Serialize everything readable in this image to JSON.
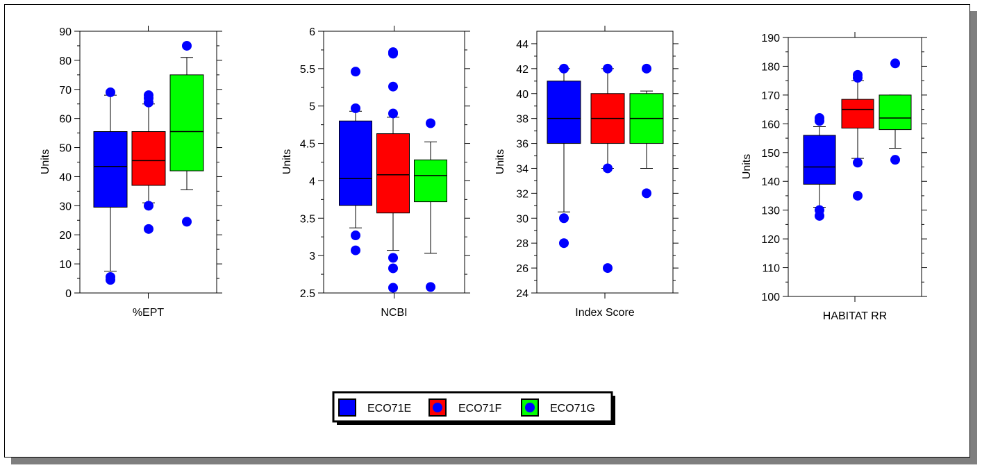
{
  "chart_data": [
    {
      "type": "box",
      "xlabel": "%EPT",
      "ylabel": "Units",
      "ylim": [
        0,
        90
      ],
      "yticks": [
        "0",
        "10",
        "20",
        "30",
        "40",
        "50",
        "60",
        "70",
        "80",
        "90"
      ],
      "series": [
        {
          "name": "ECO71E",
          "whisker_low": 7.5,
          "q1": 29.5,
          "median": 43.5,
          "q3": 55.5,
          "whisker_high": 68,
          "outliers": [
            4.5,
            5.5,
            69
          ]
        },
        {
          "name": "ECO71F",
          "whisker_low": 31,
          "q1": 37,
          "median": 45.5,
          "q3": 55.5,
          "whisker_high": 65,
          "outliers": [
            22,
            30,
            65.5,
            67,
            68
          ]
        },
        {
          "name": "ECO71G",
          "whisker_low": 35.5,
          "q1": 42,
          "median": 55.5,
          "q3": 75,
          "whisker_high": 81,
          "outliers": [
            24.5,
            85
          ]
        }
      ]
    },
    {
      "type": "box",
      "xlabel": "NCBI",
      "ylabel": "Units",
      "ylim": [
        2.5,
        6
      ],
      "yticks": [
        "2.5",
        "3",
        "3.5",
        "4",
        "4.5",
        "5",
        "5.5",
        "6"
      ],
      "series": [
        {
          "name": "ECO71E",
          "whisker_low": 3.37,
          "q1": 3.67,
          "median": 4.03,
          "q3": 4.8,
          "whisker_high": 4.93,
          "outliers": [
            3.07,
            3.27,
            4.97,
            5.46
          ]
        },
        {
          "name": "ECO71F",
          "whisker_low": 3.07,
          "q1": 3.57,
          "median": 4.08,
          "q3": 4.63,
          "whisker_high": 4.85,
          "outliers": [
            2.57,
            2.83,
            2.97,
            4.9,
            5.26,
            5.7,
            5.72
          ]
        },
        {
          "name": "ECO71G",
          "whisker_low": 3.03,
          "q1": 3.72,
          "median": 4.07,
          "q3": 4.28,
          "whisker_high": 4.52,
          "outliers": [
            2.58,
            4.77
          ]
        }
      ]
    },
    {
      "type": "box",
      "xlabel": "Index Score",
      "ylabel": "Units",
      "ylim": [
        24,
        45
      ],
      "yticks": [
        "24",
        "26",
        "28",
        "30",
        "32",
        "34",
        "36",
        "38",
        "40",
        "42",
        "44"
      ],
      "series": [
        {
          "name": "ECO71E",
          "whisker_low": 30.5,
          "q1": 36,
          "median": 38,
          "q3": 41,
          "whisker_high": 42,
          "outliers": [
            28,
            30,
            42
          ]
        },
        {
          "name": "ECO71F",
          "whisker_low": 34,
          "q1": 36,
          "median": 38,
          "q3": 40,
          "whisker_high": 42,
          "outliers": [
            26,
            34,
            42
          ]
        },
        {
          "name": "ECO71G",
          "whisker_low": 34,
          "q1": 36,
          "median": 38,
          "q3": 40,
          "whisker_high": 40.2,
          "outliers": [
            32,
            42
          ]
        }
      ]
    },
    {
      "type": "box",
      "xlabel": "HABITAT RR",
      "ylabel": "Units",
      "ylim": [
        100,
        190
      ],
      "yticks": [
        "100",
        "110",
        "120",
        "130",
        "140",
        "150",
        "160",
        "170",
        "180",
        "190"
      ],
      "series": [
        {
          "name": "ECO71E",
          "whisker_low": 131,
          "q1": 139,
          "median": 145,
          "q3": 156,
          "whisker_high": 159,
          "outliers": [
            128,
            130,
            161,
            162
          ]
        },
        {
          "name": "ECO71F",
          "whisker_low": 148,
          "q1": 158.5,
          "median": 165,
          "q3": 168.5,
          "whisker_high": 175,
          "outliers": [
            135,
            146.5,
            176,
            177
          ]
        },
        {
          "name": "ECO71G",
          "whisker_low": 151.5,
          "q1": 158,
          "median": 162,
          "q3": 170,
          "whisker_high": 170,
          "outliers": [
            147.5,
            181
          ]
        }
      ]
    }
  ],
  "legend": {
    "placement": "bottom-center",
    "items": [
      {
        "label": "ECO71E",
        "color": "#0000ff"
      },
      {
        "label": "ECO71F",
        "color": "#ff0000"
      },
      {
        "label": "ECO71G",
        "color": "#00ff00"
      }
    ]
  },
  "colors": {
    "ECO71E": "#0000ff",
    "ECO71F": "#ff0000",
    "ECO71G": "#00ff00",
    "outlier": "#0000ff"
  }
}
